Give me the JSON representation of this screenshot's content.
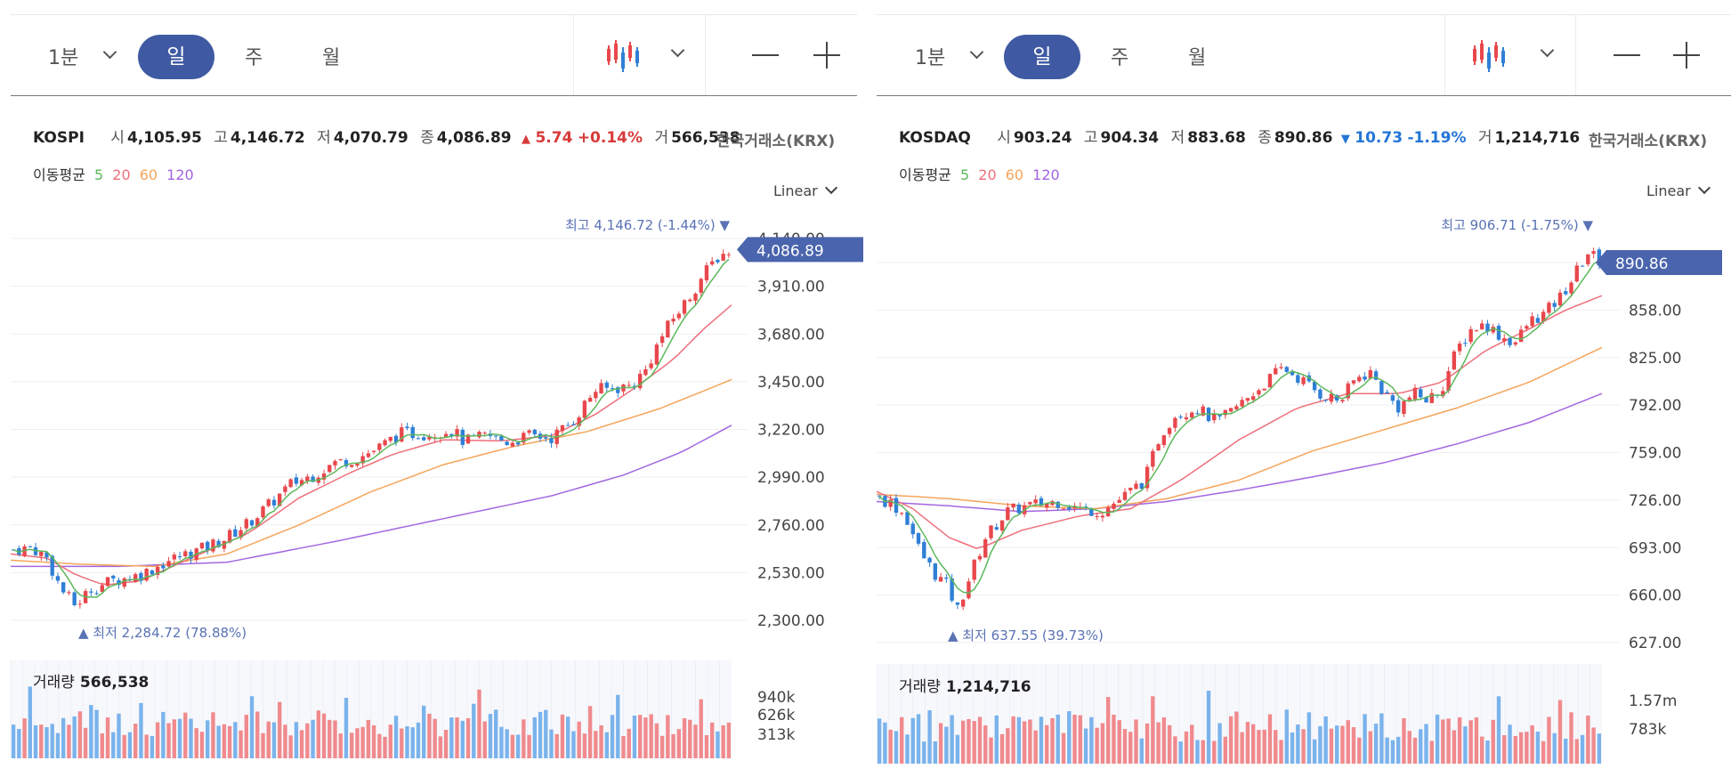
{
  "panels": [
    {
      "toolbar": {
        "minute_label": "1분",
        "day_label": "일",
        "week_label": "주",
        "month_label": "월"
      },
      "info": {
        "name": "KOSPI",
        "open_label": "시",
        "open": "4,105.95",
        "high_label": "고",
        "high": "4,146.72",
        "low_label": "저",
        "low": "4,070.79",
        "close_label": "종",
        "close": "4,086.89",
        "change_arrow": "▲",
        "change": "5.74",
        "change_pct": "+0.14%",
        "vol_label": "거",
        "volume": "566,538"
      },
      "exchange": "한국거래소(KRX)",
      "ma": {
        "label": "이동평균",
        "p5": "5",
        "p20": "20",
        "p60": "60",
        "p120": "120"
      },
      "scale": "Linear",
      "volume_label": "거래량",
      "volume_value": "566,538"
    },
    {
      "toolbar": {
        "minute_label": "1분",
        "day_label": "일",
        "week_label": "주",
        "month_label": "월"
      },
      "info": {
        "name": "KOSDAQ",
        "open_label": "시",
        "open": "903.24",
        "high_label": "고",
        "high": "904.34",
        "low_label": "저",
        "low": "883.68",
        "close_label": "종",
        "close": "890.86",
        "change_arrow": "▼",
        "change": "10.73",
        "change_pct": "-1.19%",
        "vol_label": "거",
        "volume": "1,214,716"
      },
      "exchange": "한국거래소(KRX)",
      "ma": {
        "label": "이동평균",
        "p5": "5",
        "p20": "20",
        "p60": "60",
        "p120": "120"
      },
      "scale": "Linear",
      "volume_label": "거래량",
      "volume_value": "1,214,716"
    }
  ],
  "colors": {
    "up": "#e8474c",
    "down": "#2f7fd6",
    "ma5": "#5cb85c",
    "ma20": "#ee6f7a",
    "ma60": "#f5a55a",
    "ma120": "#a266e0",
    "accent": "#3f5aa3",
    "vol_up": "#f08a8d",
    "vol_down": "#7ab3ec"
  },
  "chart_data": [
    {
      "type": "line",
      "title": "KOSPI",
      "y_ticks": [
        "4,140.00",
        "3,910.00",
        "3,680.00",
        "3,450.00",
        "3,220.00",
        "2,990.00",
        "2,760.00",
        "2,530.00",
        "2,300.00"
      ],
      "ylim": [
        2300,
        4140
      ],
      "price_path": [
        [
          0,
          2640
        ],
        [
          0.03,
          2650
        ],
        [
          0.05,
          2600
        ],
        [
          0.07,
          2450
        ],
        [
          0.09,
          2370
        ],
        [
          0.11,
          2450
        ],
        [
          0.14,
          2490
        ],
        [
          0.18,
          2520
        ],
        [
          0.22,
          2590
        ],
        [
          0.27,
          2650
        ],
        [
          0.3,
          2700
        ],
        [
          0.33,
          2770
        ],
        [
          0.36,
          2860
        ],
        [
          0.39,
          2960
        ],
        [
          0.42,
          3000
        ],
        [
          0.45,
          3060
        ],
        [
          0.48,
          3080
        ],
        [
          0.51,
          3130
        ],
        [
          0.54,
          3200
        ],
        [
          0.58,
          3200
        ],
        [
          0.61,
          3220
        ],
        [
          0.63,
          3160
        ],
        [
          0.66,
          3190
        ],
        [
          0.69,
          3160
        ],
        [
          0.72,
          3190
        ],
        [
          0.75,
          3180
        ],
        [
          0.78,
          3260
        ],
        [
          0.81,
          3410
        ],
        [
          0.84,
          3420
        ],
        [
          0.86,
          3430
        ],
        [
          0.88,
          3500
        ],
        [
          0.9,
          3650
        ],
        [
          0.92,
          3760
        ],
        [
          0.94,
          3850
        ],
        [
          0.96,
          3960
        ],
        [
          0.98,
          4050
        ],
        [
          1.0,
          4087
        ]
      ],
      "ma20_path": [
        [
          0,
          2620
        ],
        [
          0.05,
          2600
        ],
        [
          0.09,
          2520
        ],
        [
          0.13,
          2470
        ],
        [
          0.18,
          2490
        ],
        [
          0.25,
          2600
        ],
        [
          0.33,
          2720
        ],
        [
          0.4,
          2890
        ],
        [
          0.47,
          3010
        ],
        [
          0.53,
          3100
        ],
        [
          0.6,
          3170
        ],
        [
          0.68,
          3165
        ],
        [
          0.75,
          3190
        ],
        [
          0.81,
          3290
        ],
        [
          0.87,
          3430
        ],
        [
          0.92,
          3560
        ],
        [
          0.96,
          3700
        ],
        [
          1.0,
          3820
        ]
      ],
      "ma60_path": [
        [
          0,
          2590
        ],
        [
          0.1,
          2570
        ],
        [
          0.2,
          2560
        ],
        [
          0.3,
          2620
        ],
        [
          0.4,
          2760
        ],
        [
          0.5,
          2920
        ],
        [
          0.6,
          3050
        ],
        [
          0.7,
          3140
        ],
        [
          0.8,
          3210
        ],
        [
          0.9,
          3320
        ],
        [
          1.0,
          3460
        ]
      ],
      "ma120_path": [
        [
          0,
          2560
        ],
        [
          0.15,
          2560
        ],
        [
          0.3,
          2580
        ],
        [
          0.45,
          2680
        ],
        [
          0.6,
          2790
        ],
        [
          0.75,
          2900
        ],
        [
          0.85,
          3000
        ],
        [
          0.93,
          3110
        ],
        [
          1.0,
          3240
        ]
      ],
      "annotations": {
        "high": "최고 4,146.72 (-1.44%)",
        "low": "최저 2,284.72 (78.88%)",
        "last_price": "4,086.89"
      },
      "volume_ticks": [
        "940k",
        "626k",
        "313k"
      ],
      "volume_ylim": [
        0,
        1250
      ]
    },
    {
      "type": "line",
      "title": "KOSDAQ",
      "y_ticks": [
        "891.00",
        "858.00",
        "825.00",
        "792.00",
        "759.00",
        "726.00",
        "693.00",
        "660.00",
        "627.00"
      ],
      "ylim": [
        627,
        891
      ],
      "price_path": [
        [
          0,
          728
        ],
        [
          0.02,
          724
        ],
        [
          0.04,
          715
        ],
        [
          0.06,
          690
        ],
        [
          0.08,
          675
        ],
        [
          0.1,
          665
        ],
        [
          0.11,
          648
        ],
        [
          0.13,
          675
        ],
        [
          0.15,
          700
        ],
        [
          0.18,
          718
        ],
        [
          0.21,
          722
        ],
        [
          0.25,
          725
        ],
        [
          0.28,
          720
        ],
        [
          0.31,
          718
        ],
        [
          0.34,
          728
        ],
        [
          0.37,
          740
        ],
        [
          0.39,
          770
        ],
        [
          0.41,
          785
        ],
        [
          0.44,
          790
        ],
        [
          0.47,
          780
        ],
        [
          0.5,
          792
        ],
        [
          0.53,
          805
        ],
        [
          0.56,
          818
        ],
        [
          0.59,
          808
        ],
        [
          0.61,
          800
        ],
        [
          0.64,
          795
        ],
        [
          0.66,
          810
        ],
        [
          0.68,
          815
        ],
        [
          0.7,
          800
        ],
        [
          0.72,
          790
        ],
        [
          0.74,
          800
        ],
        [
          0.76,
          795
        ],
        [
          0.78,
          805
        ],
        [
          0.8,
          830
        ],
        [
          0.82,
          845
        ],
        [
          0.84,
          848
        ],
        [
          0.86,
          840
        ],
        [
          0.88,
          835
        ],
        [
          0.9,
          850
        ],
        [
          0.92,
          855
        ],
        [
          0.94,
          865
        ],
        [
          0.96,
          880
        ],
        [
          0.98,
          898
        ],
        [
          1.0,
          891
        ]
      ],
      "ma20_path": [
        [
          0,
          732
        ],
        [
          0.05,
          720
        ],
        [
          0.1,
          700
        ],
        [
          0.14,
          692
        ],
        [
          0.2,
          705
        ],
        [
          0.28,
          715
        ],
        [
          0.35,
          720
        ],
        [
          0.42,
          740
        ],
        [
          0.5,
          768
        ],
        [
          0.58,
          790
        ],
        [
          0.65,
          800
        ],
        [
          0.72,
          800
        ],
        [
          0.78,
          808
        ],
        [
          0.84,
          830
        ],
        [
          0.9,
          845
        ],
        [
          0.95,
          858
        ],
        [
          1.0,
          868
        ]
      ],
      "ma60_path": [
        [
          0,
          730
        ],
        [
          0.1,
          727
        ],
        [
          0.2,
          722
        ],
        [
          0.3,
          720
        ],
        [
          0.4,
          727
        ],
        [
          0.5,
          740
        ],
        [
          0.6,
          760
        ],
        [
          0.7,
          775
        ],
        [
          0.8,
          790
        ],
        [
          0.9,
          808
        ],
        [
          1.0,
          832
        ]
      ],
      "ma120_path": [
        [
          0,
          725
        ],
        [
          0.1,
          722
        ],
        [
          0.2,
          718
        ],
        [
          0.3,
          720
        ],
        [
          0.4,
          725
        ],
        [
          0.5,
          733
        ],
        [
          0.6,
          742
        ],
        [
          0.7,
          752
        ],
        [
          0.8,
          765
        ],
        [
          0.9,
          780
        ],
        [
          1.0,
          800
        ]
      ],
      "annotations": {
        "high": "최고 906.71 (-1.75%)",
        "low": "최저 637.55 (39.73%)",
        "last_price": "890.86"
      },
      "volume_ticks": [
        "1.57m",
        "783k"
      ],
      "volume_ylim": [
        0,
        2100
      ]
    }
  ]
}
